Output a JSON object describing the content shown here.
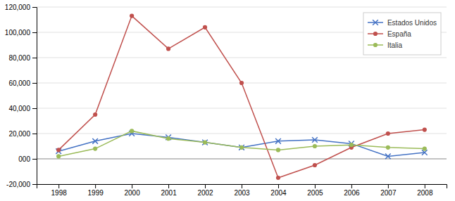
{
  "chart_data": {
    "type": "line",
    "x": [
      1998,
      1999,
      2000,
      2001,
      2002,
      2003,
      2004,
      2005,
      2006,
      2007,
      2008
    ],
    "series": [
      {
        "name": "Estados Unidos",
        "color": "#4472C4",
        "marker": "x",
        "values": [
          6000,
          14000,
          20000,
          17000,
          13000,
          9000,
          14000,
          15000,
          12000,
          2000,
          5000
        ]
      },
      {
        "name": "España",
        "color": "#C0504D",
        "marker": "o",
        "values": [
          7000,
          35000,
          113000,
          87000,
          104000,
          60000,
          -15000,
          -5000,
          9000,
          20000,
          23000
        ]
      },
      {
        "name": "Italia",
        "color": "#9BBB59",
        "marker": "o",
        "values": [
          2000,
          8000,
          22000,
          16000,
          13000,
          9000,
          7000,
          10000,
          11000,
          9000,
          8000
        ]
      }
    ],
    "xlim": [
      1997.4,
      2008.6
    ],
    "xticks": [
      1998,
      1999,
      2000,
      2001,
      2002,
      2003,
      2004,
      2005,
      2006,
      2007,
      2008
    ],
    "ylim": [
      -20000,
      120000
    ],
    "yticks": [
      {
        "value": -20000,
        "label": "-20,000"
      },
      {
        "value": 0,
        "label": "000"
      },
      {
        "value": 20000,
        "label": "20,000"
      },
      {
        "value": 40000,
        "label": "40,000"
      },
      {
        "value": 60000,
        "label": "60,000"
      },
      {
        "value": 80000,
        "label": "80,000"
      },
      {
        "value": 100000,
        "label": "100,000"
      },
      {
        "value": 120000,
        "label": "120,000"
      }
    ],
    "grid": true,
    "legend": "upper right"
  }
}
